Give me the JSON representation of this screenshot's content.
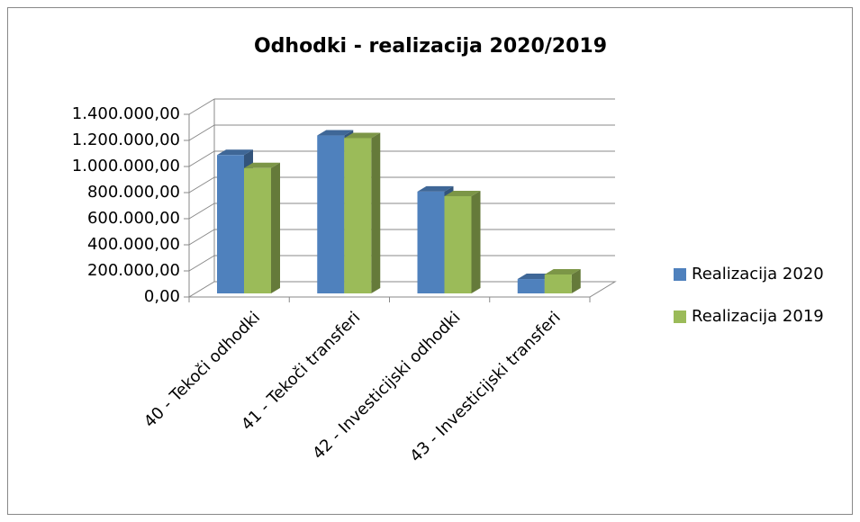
{
  "chart_data": {
    "type": "bar3d",
    "title": "Odhodki - realizacija 2020/2019",
    "categories": [
      "40 - Tekoči odhodki",
      "41 - Tekoči transferi",
      "42 - Investicijski odhodki",
      "43 - Investicijski transferi"
    ],
    "series": [
      {
        "name": "Realizacija 2020",
        "color": "#4f81bd",
        "values": [
          1060000,
          1210000,
          780000,
          110000
        ]
      },
      {
        "name": "Realizacija 2019",
        "color": "#9bbb59",
        "values": [
          960000,
          1190000,
          745000,
          145000
        ]
      }
    ],
    "ylim": [
      0,
      1400000
    ],
    "yticks": [
      {
        "value": 0,
        "label": "0,00"
      },
      {
        "value": 200000,
        "label": "200.000,00"
      },
      {
        "value": 400000,
        "label": "400.000,00"
      },
      {
        "value": 600000,
        "label": "600.000,00"
      },
      {
        "value": 800000,
        "label": "800.000,00"
      },
      {
        "value": 1000000,
        "label": "1.000.000,00"
      },
      {
        "value": 1200000,
        "label": "1.200.000,00"
      },
      {
        "value": 1400000,
        "label": "1.400.000,00"
      }
    ],
    "grid": true,
    "legend": "right"
  }
}
